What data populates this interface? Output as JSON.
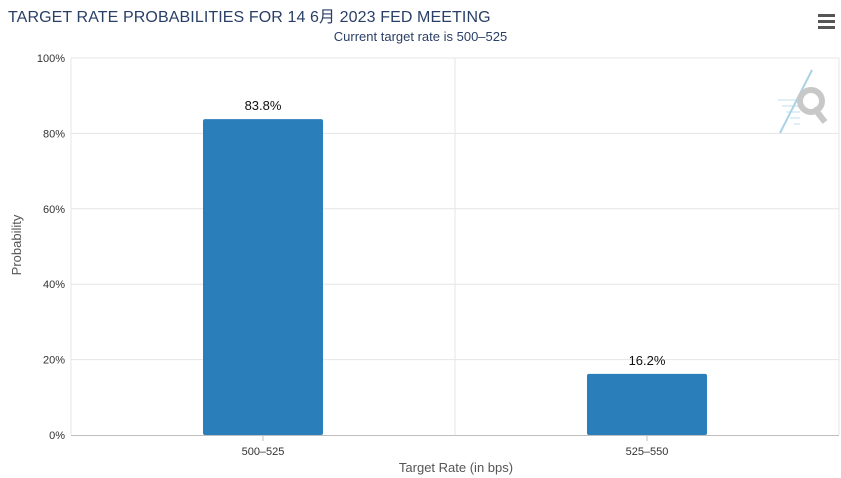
{
  "header": {
    "title": "TARGET RATE PROBABILITIES FOR 14 6月 2023 FED MEETING",
    "subtitle": "Current target rate is 500–525"
  },
  "menu": {
    "icon": "hamburger-menu-icon"
  },
  "watermark": {
    "icon": "cme-q-logo-icon",
    "color": "#cccccc"
  },
  "chart_data": {
    "type": "bar",
    "title": "TARGET RATE PROBABILITIES FOR 14 6月 2023 FED MEETING",
    "subtitle": "Current target rate is 500–525",
    "categories": [
      "500–525",
      "525–550"
    ],
    "values": [
      83.8,
      16.2
    ],
    "data_labels": [
      "83.8%",
      "16.2%"
    ],
    "xlabel": "Target Rate (in bps)",
    "ylabel": "Probability",
    "ylim": [
      0,
      100
    ],
    "yticks": [
      0,
      20,
      40,
      60,
      80,
      100
    ],
    "ytick_labels": [
      "0%",
      "20%",
      "40%",
      "60%",
      "80%",
      "100%"
    ],
    "grid": true,
    "bar_color": "#2a7fba"
  }
}
